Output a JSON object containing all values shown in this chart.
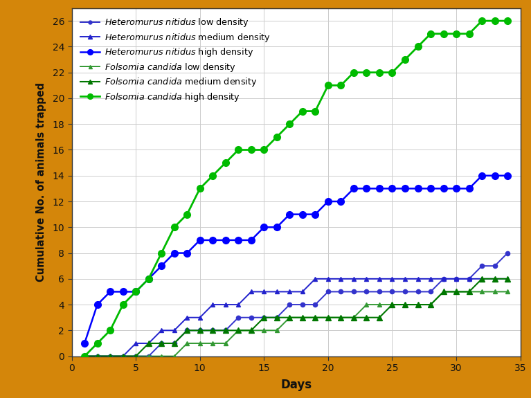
{
  "series": [
    {
      "label_italic": "Heteromurus nitidus",
      "label_rest": " low density",
      "color": "#3333cc",
      "marker": "o",
      "markersize": 4.5,
      "linewidth": 1.4,
      "x": [
        1,
        2,
        3,
        4,
        5,
        6,
        7,
        8,
        9,
        10,
        11,
        12,
        13,
        14,
        15,
        16,
        17,
        18,
        19,
        20,
        21,
        22,
        23,
        24,
        25,
        26,
        27,
        28,
        29,
        30,
        31,
        32,
        33,
        34
      ],
      "y": [
        0,
        0,
        0,
        0,
        0,
        0,
        1,
        1,
        2,
        2,
        2,
        2,
        3,
        3,
        3,
        3,
        4,
        4,
        4,
        5,
        5,
        5,
        5,
        5,
        5,
        5,
        5,
        5,
        6,
        6,
        6,
        7,
        7,
        8
      ]
    },
    {
      "label_italic": "Heteromurus nitidus",
      "label_rest": " medium density",
      "color": "#2222cc",
      "marker": "^",
      "markersize": 5,
      "linewidth": 1.4,
      "x": [
        1,
        2,
        3,
        4,
        5,
        6,
        7,
        8,
        9,
        10,
        11,
        12,
        13,
        14,
        15,
        16,
        17,
        18,
        19,
        20,
        21,
        22,
        23,
        24,
        25,
        26,
        27,
        28,
        29,
        30,
        31,
        32,
        33,
        34
      ],
      "y": [
        0,
        0,
        0,
        0,
        1,
        1,
        2,
        2,
        3,
        3,
        4,
        4,
        4,
        5,
        5,
        5,
        5,
        5,
        6,
        6,
        6,
        6,
        6,
        6,
        6,
        6,
        6,
        6,
        6,
        6,
        6,
        6,
        6,
        6
      ]
    },
    {
      "label_italic": "Heteromurus nitidus",
      "label_rest": " high density",
      "color": "#0000ff",
      "marker": "o",
      "markersize": 7,
      "linewidth": 1.8,
      "x": [
        1,
        2,
        3,
        4,
        5,
        6,
        7,
        8,
        9,
        10,
        11,
        12,
        13,
        14,
        15,
        16,
        17,
        18,
        19,
        20,
        21,
        22,
        23,
        24,
        25,
        26,
        27,
        28,
        29,
        30,
        31,
        32,
        33,
        34
      ],
      "y": [
        1,
        4,
        5,
        5,
        5,
        6,
        7,
        8,
        8,
        9,
        9,
        9,
        9,
        9,
        10,
        10,
        11,
        11,
        11,
        12,
        12,
        13,
        13,
        13,
        13,
        13,
        13,
        13,
        13,
        13,
        13,
        14,
        14,
        14
      ]
    },
    {
      "label_italic": "Folsomia candida",
      "label_rest": " low density",
      "color": "#339933",
      "marker": "^",
      "markersize": 4.5,
      "linewidth": 1.4,
      "x": [
        1,
        2,
        3,
        4,
        5,
        6,
        7,
        8,
        9,
        10,
        11,
        12,
        13,
        14,
        15,
        16,
        17,
        18,
        19,
        20,
        21,
        22,
        23,
        24,
        25,
        26,
        27,
        28,
        29,
        30,
        31,
        32,
        33,
        34
      ],
      "y": [
        0,
        0,
        0,
        0,
        0,
        0,
        0,
        0,
        1,
        1,
        1,
        1,
        2,
        2,
        2,
        2,
        3,
        3,
        3,
        3,
        3,
        3,
        4,
        4,
        4,
        4,
        4,
        4,
        5,
        5,
        5,
        5,
        5,
        5
      ]
    },
    {
      "label_italic": "Folsomia candida",
      "label_rest": " medium density",
      "color": "#007700",
      "marker": "^",
      "markersize": 5.5,
      "linewidth": 1.5,
      "x": [
        1,
        2,
        3,
        4,
        5,
        6,
        7,
        8,
        9,
        10,
        11,
        12,
        13,
        14,
        15,
        16,
        17,
        18,
        19,
        20,
        21,
        22,
        23,
        24,
        25,
        26,
        27,
        28,
        29,
        30,
        31,
        32,
        33,
        34
      ],
      "y": [
        0,
        0,
        0,
        0,
        0,
        1,
        1,
        1,
        2,
        2,
        2,
        2,
        2,
        2,
        3,
        3,
        3,
        3,
        3,
        3,
        3,
        3,
        3,
        3,
        4,
        4,
        4,
        4,
        5,
        5,
        5,
        6,
        6,
        6
      ]
    },
    {
      "label_italic": "Folsomia candida",
      "label_rest": " high density",
      "color": "#00bb00",
      "marker": "o",
      "markersize": 7,
      "linewidth": 2.0,
      "x": [
        1,
        2,
        3,
        4,
        5,
        6,
        7,
        8,
        9,
        10,
        11,
        12,
        13,
        14,
        15,
        16,
        17,
        18,
        19,
        20,
        21,
        22,
        23,
        24,
        25,
        26,
        27,
        28,
        29,
        30,
        31,
        32,
        33,
        34
      ],
      "y": [
        0,
        1,
        2,
        4,
        5,
        6,
        8,
        10,
        11,
        13,
        14,
        15,
        16,
        16,
        16,
        17,
        18,
        19,
        19,
        21,
        21,
        22,
        22,
        22,
        22,
        23,
        24,
        25,
        25,
        25,
        25,
        26,
        26,
        26
      ]
    }
  ],
  "xlabel": "Days",
  "ylabel": "Cumulative No. of animals trapped",
  "xlim": [
    0,
    35
  ],
  "ylim": [
    0,
    27
  ],
  "xticks": [
    0,
    5,
    10,
    15,
    20,
    25,
    30,
    35
  ],
  "yticks": [
    0,
    2,
    4,
    6,
    8,
    10,
    12,
    14,
    16,
    18,
    20,
    22,
    24,
    26
  ],
  "background_color": "#ffffff",
  "border_color": "#d4860a",
  "grid_color": "#cccccc"
}
